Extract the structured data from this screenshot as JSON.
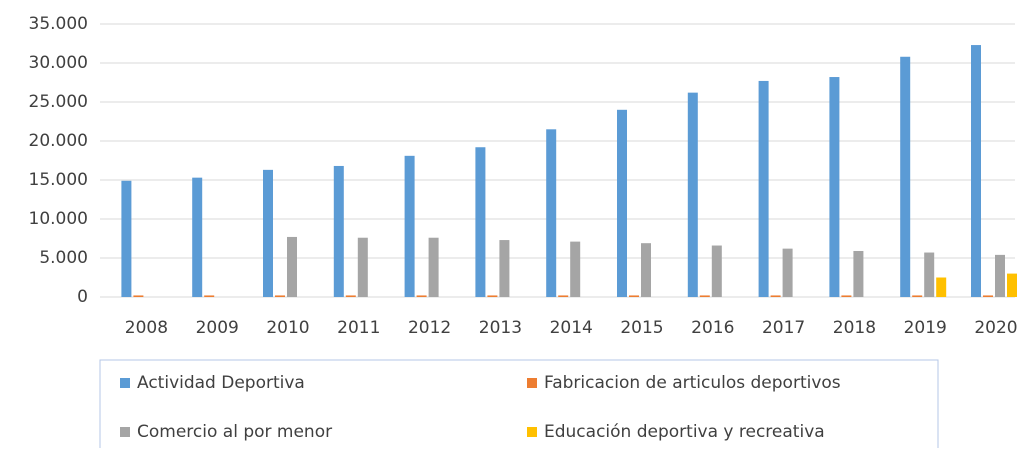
{
  "chart_data": {
    "type": "bar",
    "categories": [
      "2008",
      "2009",
      "2010",
      "2011",
      "2012",
      "2013",
      "2014",
      "2015",
      "2016",
      "2017",
      "2018",
      "2019",
      "2020"
    ],
    "series": [
      {
        "name": "Actividad Deportiva",
        "color": "#5b9bd5",
        "values": [
          14900,
          15300,
          16300,
          16800,
          18100,
          19200,
          21500,
          24000,
          26200,
          27700,
          28200,
          30800,
          32300
        ]
      },
      {
        "name": "Fabricacion de articulos deportivos",
        "color": "#ed7d31",
        "values": [
          200,
          200,
          200,
          200,
          200,
          200,
          200,
          200,
          200,
          200,
          200,
          200,
          200
        ]
      },
      {
        "name": "Comercio al por menor",
        "color": "#a5a5a5",
        "values": [
          null,
          null,
          7700,
          7600,
          7600,
          7300,
          7100,
          6900,
          6600,
          6200,
          5900,
          5700,
          5400
        ]
      },
      {
        "name": "Educación deportiva y recreativa",
        "color": "#ffc000",
        "values": [
          null,
          null,
          null,
          null,
          null,
          null,
          null,
          null,
          null,
          null,
          null,
          2500,
          3000
        ]
      }
    ],
    "ylim": [
      0,
      35000
    ],
    "yticks": [
      0,
      {
        "value": 5000,
        "label": "5.000"
      },
      {
        "value": 10000,
        "label": "10.000"
      },
      {
        "value": 15000,
        "label": "15.000"
      },
      {
        "value": 20000,
        "label": "20.000"
      },
      {
        "value": 25000,
        "label": "25.000"
      },
      {
        "value": 30000,
        "label": "30.000"
      },
      {
        "value": 35000,
        "label": "35.000"
      }
    ],
    "grid": true,
    "legend": "bottom"
  }
}
